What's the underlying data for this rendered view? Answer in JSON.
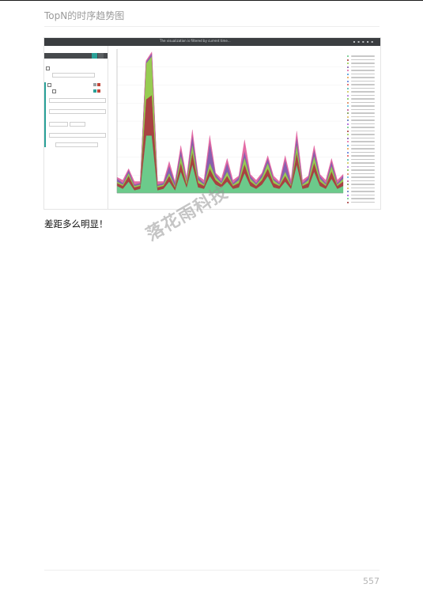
{
  "header": {
    "title": "TopN的时序趋势图"
  },
  "body": {
    "caption": "差距多么明显！"
  },
  "watermark": "落花雨科技",
  "footer": {
    "page_number": "557"
  },
  "screenshot": {
    "title_bar": "The visualization is filtered by current time..."
  },
  "colors": {
    "accent": "#2aa198",
    "series": [
      "#5cc47e",
      "#a02d2d",
      "#8cc63f",
      "#7b4fa6",
      "#e05c9c",
      "#3a8fd1",
      "#e89a3c",
      "#4c6fd6",
      "#d94a4a",
      "#3fb2a7",
      "#c9c24c",
      "#a66bd6",
      "#6fc24c",
      "#d67b4a",
      "#4ab0d6",
      "#b84a8f",
      "#6b8c3f",
      "#d6b04a",
      "#4a6bb0",
      "#9c4ad6"
    ]
  },
  "chart_data": {
    "type": "area",
    "stacked": true,
    "series": [
      {
        "values": [
          5,
          3,
          8,
          2,
          3,
          40,
          40,
          2,
          3,
          8,
          2,
          15,
          4,
          20,
          4,
          3,
          12,
          6,
          4,
          8,
          3,
          4,
          14,
          5,
          3,
          6,
          12,
          4,
          3,
          8,
          3,
          20,
          3,
          4,
          15,
          5,
          3,
          10,
          3,
          5
        ]
      },
      {
        "values": [
          2,
          2,
          4,
          2,
          2,
          25,
          28,
          2,
          2,
          4,
          2,
          6,
          2,
          8,
          3,
          2,
          5,
          3,
          2,
          4,
          2,
          3,
          6,
          3,
          2,
          3,
          5,
          3,
          2,
          4,
          2,
          8,
          2,
          3,
          6,
          3,
          2,
          5,
          2,
          3
        ]
      },
      {
        "values": [
          1,
          1,
          2,
          1,
          1,
          25,
          27,
          1,
          1,
          2,
          1,
          5,
          2,
          6,
          2,
          1,
          4,
          2,
          1,
          3,
          1,
          2,
          5,
          2,
          1,
          2,
          4,
          2,
          1,
          3,
          1,
          6,
          1,
          2,
          5,
          2,
          1,
          4,
          1,
          2
        ]
      },
      {
        "values": [
          2,
          1,
          2,
          1,
          1,
          1,
          2,
          1,
          1,
          5,
          2,
          4,
          1,
          6,
          2,
          1,
          14,
          2,
          1,
          6,
          1,
          2,
          4,
          2,
          1,
          2,
          3,
          1,
          1,
          8,
          1,
          5,
          1,
          2,
          4,
          2,
          1,
          3,
          1,
          2
        ]
      },
      {
        "values": [
          1,
          2,
          1,
          2,
          1,
          1,
          1,
          2,
          1,
          3,
          1,
          3,
          2,
          4,
          1,
          2,
          5,
          1,
          2,
          3,
          2,
          1,
          8,
          1,
          2,
          1,
          2,
          2,
          1,
          3,
          2,
          4,
          2,
          1,
          3,
          1,
          2,
          2,
          2,
          1
        ]
      }
    ]
  }
}
